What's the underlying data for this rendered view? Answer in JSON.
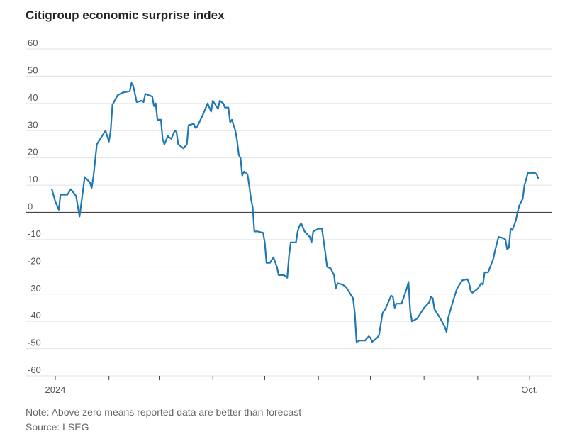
{
  "chart_data": {
    "type": "line",
    "title": "Citigroup economic surprise index",
    "note": "Note: Above zero means reported data are better than forecast",
    "source": "Source: LSEG",
    "xlabel": "",
    "ylabel": "",
    "ylim": [
      -60,
      60
    ],
    "yticks": [
      60,
      50,
      40,
      30,
      20,
      10,
      0,
      -10,
      -20,
      -30,
      -40,
      -50,
      -60
    ],
    "ytick_labels": [
      "60",
      "50",
      "40",
      "30",
      "20",
      "10",
      "0",
      "-10",
      "-20",
      "-30",
      "-40",
      "-50",
      "-60"
    ],
    "xlim": [
      "2024-01-01",
      "2024-10-12"
    ],
    "xticks": [
      {
        "date": "2024-01-01",
        "label": "2024"
      },
      {
        "date": "2024-02-01",
        "label": ""
      },
      {
        "date": "2024-03-01",
        "label": ""
      },
      {
        "date": "2024-04-01",
        "label": ""
      },
      {
        "date": "2024-05-01",
        "label": ""
      },
      {
        "date": "2024-06-01",
        "label": ""
      },
      {
        "date": "2024-07-01",
        "label": ""
      },
      {
        "date": "2024-08-01",
        "label": ""
      },
      {
        "date": "2024-09-01",
        "label": ""
      },
      {
        "date": "2024-10-01",
        "label": "Oct."
      }
    ],
    "grid": true,
    "series": [
      {
        "color": "#1f77b4",
        "points": [
          [
            "2023-12-30",
            8.5
          ],
          [
            "2024-01-01",
            4
          ],
          [
            "2024-01-03",
            1
          ],
          [
            "2024-01-04",
            6.5
          ],
          [
            "2024-01-08",
            6.5
          ],
          [
            "2024-01-10",
            8.5
          ],
          [
            "2024-01-13",
            6
          ],
          [
            "2024-01-15",
            -1.5
          ],
          [
            "2024-01-18",
            13
          ],
          [
            "2024-01-21",
            11
          ],
          [
            "2024-01-22",
            9
          ],
          [
            "2024-01-23",
            13
          ],
          [
            "2024-01-25",
            25
          ],
          [
            "2024-01-28",
            28
          ],
          [
            "2024-01-30",
            30
          ],
          [
            "2024-02-01",
            26
          ],
          [
            "2024-02-02",
            30
          ],
          [
            "2024-02-03",
            39.5
          ],
          [
            "2024-02-06",
            43
          ],
          [
            "2024-02-09",
            44
          ],
          [
            "2024-02-13",
            44.5
          ],
          [
            "2024-02-14",
            47.5
          ],
          [
            "2024-02-15",
            46.5
          ],
          [
            "2024-02-17",
            40.5
          ],
          [
            "2024-02-20",
            41
          ],
          [
            "2024-02-21",
            40.5
          ],
          [
            "2024-02-22",
            43.5
          ],
          [
            "2024-02-26",
            42.5
          ],
          [
            "2024-02-27",
            39
          ],
          [
            "2024-02-28",
            40
          ],
          [
            "2024-02-29",
            34
          ],
          [
            "2024-03-02",
            34
          ],
          [
            "2024-03-03",
            27
          ],
          [
            "2024-03-04",
            25
          ],
          [
            "2024-03-06",
            28
          ],
          [
            "2024-03-08",
            27
          ],
          [
            "2024-03-10",
            30
          ],
          [
            "2024-03-11",
            29.5
          ],
          [
            "2024-03-12",
            25
          ],
          [
            "2024-03-15",
            23.5
          ],
          [
            "2024-03-17",
            25
          ],
          [
            "2024-03-18",
            32
          ],
          [
            "2024-03-21",
            32.5
          ],
          [
            "2024-03-22",
            31
          ],
          [
            "2024-03-23",
            31.5
          ],
          [
            "2024-03-26",
            35.5
          ],
          [
            "2024-03-29",
            40
          ],
          [
            "2024-03-31",
            37
          ],
          [
            "2024-04-01",
            41
          ],
          [
            "2024-04-03",
            39
          ],
          [
            "2024-04-04",
            38
          ],
          [
            "2024-04-05",
            41
          ],
          [
            "2024-04-07",
            40
          ],
          [
            "2024-04-08",
            38.5
          ],
          [
            "2024-04-10",
            38.5
          ],
          [
            "2024-04-11",
            33
          ],
          [
            "2024-04-12",
            34
          ],
          [
            "2024-04-14",
            30
          ],
          [
            "2024-04-15",
            26.5
          ],
          [
            "2024-04-16",
            21
          ],
          [
            "2024-04-17",
            20
          ],
          [
            "2024-04-18",
            13.5
          ],
          [
            "2024-04-19",
            15
          ],
          [
            "2024-04-21",
            14
          ],
          [
            "2024-04-22",
            10
          ],
          [
            "2024-04-23",
            5
          ],
          [
            "2024-04-24",
            2
          ],
          [
            "2024-04-25",
            -7
          ],
          [
            "2024-04-27",
            -7
          ],
          [
            "2024-04-30",
            -7.5
          ],
          [
            "2024-05-01",
            -11
          ],
          [
            "2024-05-02",
            -18.5
          ],
          [
            "2024-05-04",
            -18.5
          ],
          [
            "2024-05-06",
            -16.5
          ],
          [
            "2024-05-08",
            -20
          ],
          [
            "2024-05-09",
            -23
          ],
          [
            "2024-05-12",
            -23
          ],
          [
            "2024-05-14",
            -24
          ],
          [
            "2024-05-15",
            -16
          ],
          [
            "2024-05-16",
            -11
          ],
          [
            "2024-05-19",
            -11
          ],
          [
            "2024-05-20",
            -7
          ],
          [
            "2024-05-21",
            -5
          ],
          [
            "2024-05-22",
            -4
          ],
          [
            "2024-05-24",
            -7
          ],
          [
            "2024-05-27",
            -9
          ],
          [
            "2024-05-28",
            -11
          ],
          [
            "2024-05-29",
            -7
          ],
          [
            "2024-06-01",
            -6
          ],
          [
            "2024-06-03",
            -6
          ],
          [
            "2024-06-05",
            -15
          ],
          [
            "2024-06-06",
            -20
          ],
          [
            "2024-06-08",
            -20.5
          ],
          [
            "2024-06-10",
            -23
          ],
          [
            "2024-06-11",
            -28
          ],
          [
            "2024-06-12",
            -26
          ],
          [
            "2024-06-15",
            -26.5
          ],
          [
            "2024-06-17",
            -27.5
          ],
          [
            "2024-06-19",
            -29.5
          ],
          [
            "2024-06-21",
            -31.5
          ],
          [
            "2024-06-22",
            -37
          ],
          [
            "2024-06-23",
            -47.5
          ],
          [
            "2024-06-25",
            -47
          ],
          [
            "2024-06-28",
            -47
          ],
          [
            "2024-06-30",
            -45.5
          ],
          [
            "2024-07-01",
            -46
          ],
          [
            "2024-07-02",
            -47.5
          ],
          [
            "2024-07-05",
            -46
          ],
          [
            "2024-07-06",
            -45
          ],
          [
            "2024-07-07",
            -41
          ],
          [
            "2024-07-08",
            -37
          ],
          [
            "2024-07-10",
            -35
          ],
          [
            "2024-07-13",
            -30.5
          ],
          [
            "2024-07-14",
            -31
          ],
          [
            "2024-07-15",
            -35
          ],
          [
            "2024-07-16",
            -33.5
          ],
          [
            "2024-07-19",
            -33.5
          ],
          [
            "2024-07-22",
            -28
          ],
          [
            "2024-07-23",
            -25.5
          ],
          [
            "2024-07-24",
            -36
          ],
          [
            "2024-07-25",
            -40
          ],
          [
            "2024-07-28",
            -39
          ],
          [
            "2024-07-31",
            -36
          ],
          [
            "2024-08-01",
            -35
          ],
          [
            "2024-08-04",
            -33
          ],
          [
            "2024-08-05",
            -31
          ],
          [
            "2024-08-06",
            -31.5
          ],
          [
            "2024-08-07",
            -35.5
          ],
          [
            "2024-08-10",
            -38.5
          ],
          [
            "2024-08-13",
            -42
          ],
          [
            "2024-08-14",
            -44
          ],
          [
            "2024-08-15",
            -38.5
          ],
          [
            "2024-08-18",
            -32
          ],
          [
            "2024-08-20",
            -28
          ],
          [
            "2024-08-21",
            -27
          ],
          [
            "2024-08-23",
            -25
          ],
          [
            "2024-08-26",
            -24.5
          ],
          [
            "2024-08-27",
            -26
          ],
          [
            "2024-08-28",
            -29
          ],
          [
            "2024-08-29",
            -29.5
          ],
          [
            "2024-09-01",
            -28
          ],
          [
            "2024-09-03",
            -26
          ],
          [
            "2024-09-04",
            -26.5
          ],
          [
            "2024-09-05",
            -22
          ],
          [
            "2024-09-07",
            -22
          ],
          [
            "2024-09-10",
            -17
          ],
          [
            "2024-09-11",
            -14
          ],
          [
            "2024-09-13",
            -9
          ],
          [
            "2024-09-16",
            -9.5
          ],
          [
            "2024-09-17",
            -10
          ],
          [
            "2024-09-18",
            -13.5
          ],
          [
            "2024-09-19",
            -13
          ],
          [
            "2024-09-20",
            -6
          ],
          [
            "2024-09-21",
            -6.5
          ],
          [
            "2024-09-23",
            -3
          ],
          [
            "2024-09-24",
            0
          ],
          [
            "2024-09-25",
            2.5
          ],
          [
            "2024-09-27",
            5
          ],
          [
            "2024-09-28",
            10
          ],
          [
            "2024-09-30",
            14.5
          ],
          [
            "2024-10-04",
            14.5
          ],
          [
            "2024-10-05",
            14
          ],
          [
            "2024-10-06",
            12.5
          ]
        ]
      }
    ]
  }
}
